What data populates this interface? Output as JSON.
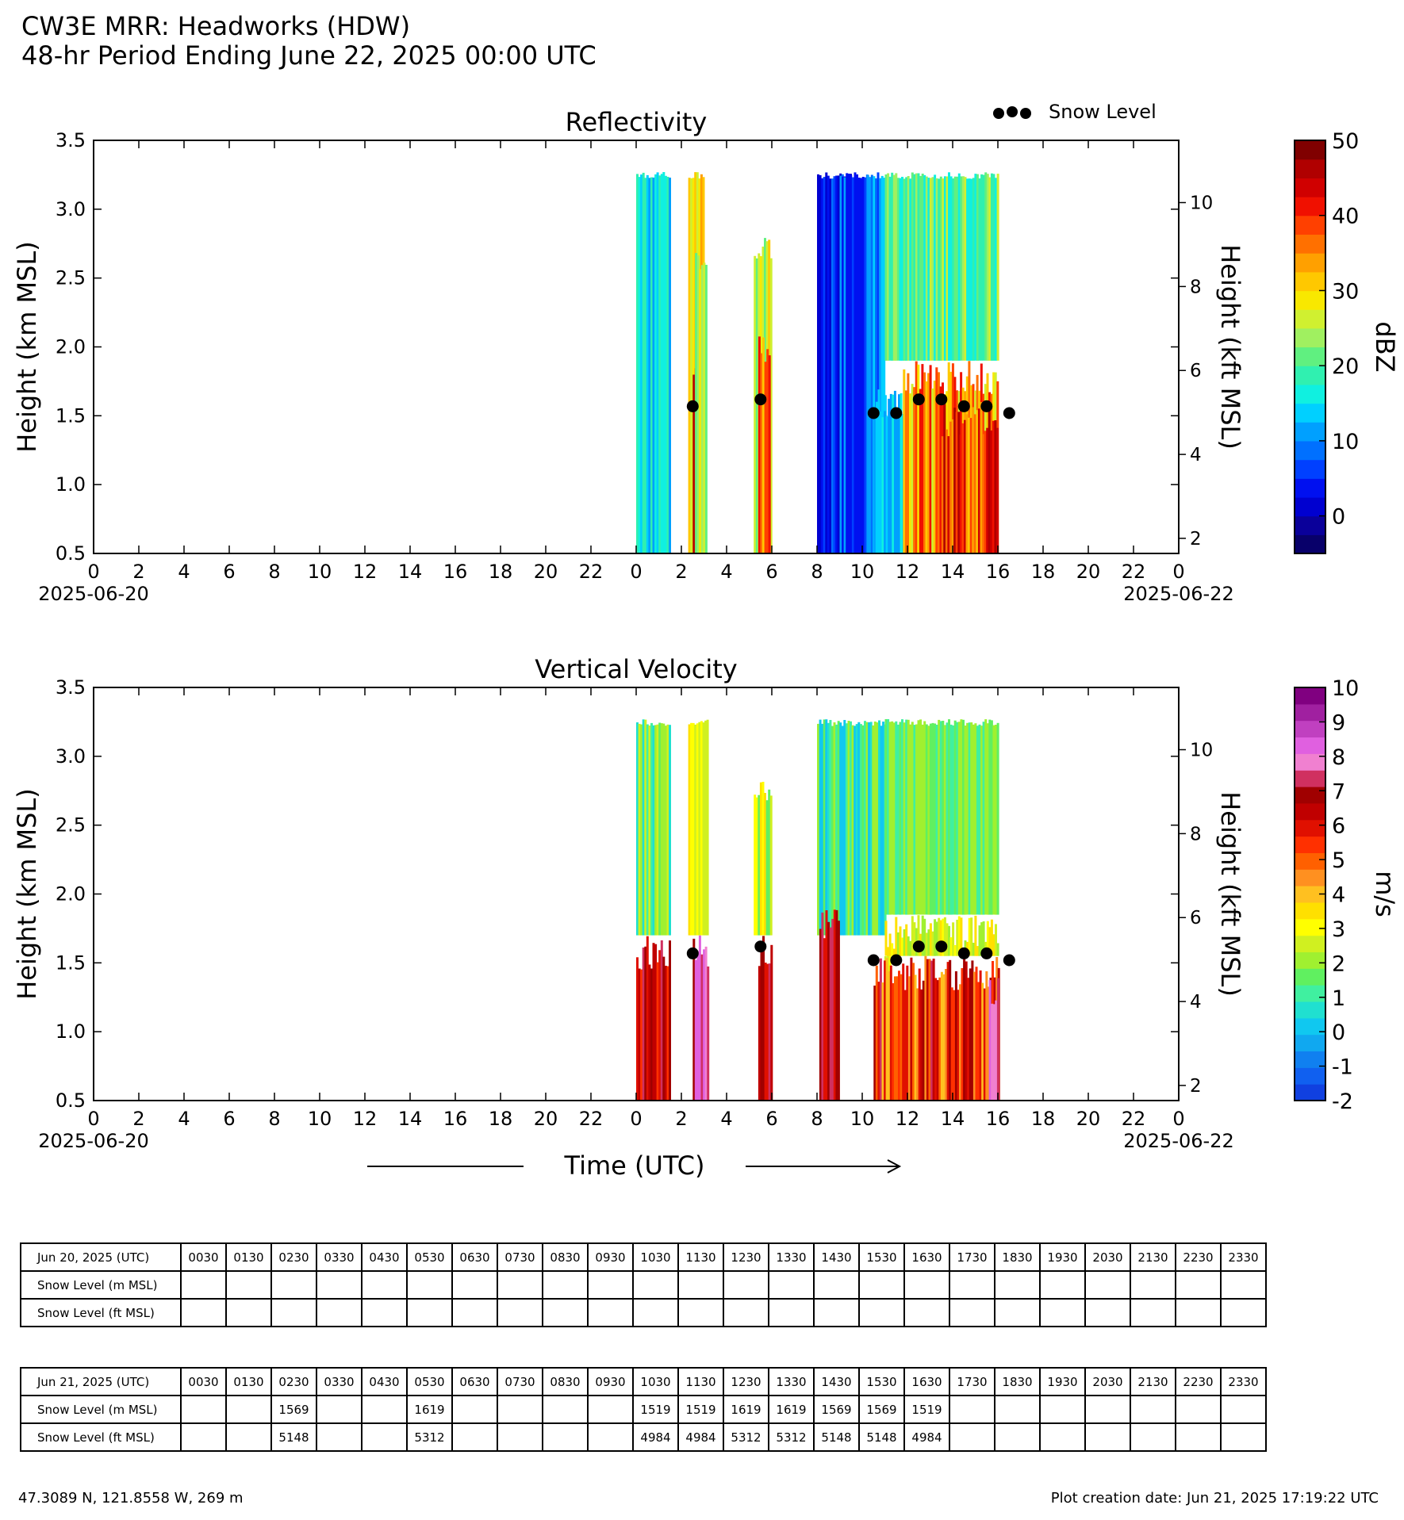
{
  "header": {
    "title_line1": "CW3E MRR: Headworks (HDW)",
    "title_line2": "48-hr Period Ending June 22, 2025 00:00 UTC"
  },
  "legend": {
    "snow_level_label": "Snow Level"
  },
  "xaxis": {
    "tick_labels": [
      "0",
      "2",
      "4",
      "6",
      "8",
      "10",
      "12",
      "14",
      "16",
      "18",
      "20",
      "22",
      "0",
      "2",
      "4",
      "6",
      "8",
      "10",
      "12",
      "14",
      "16",
      "18",
      "20",
      "22",
      "0"
    ],
    "start_date": "2025-06-20",
    "end_date": "2025-06-22",
    "title": "Time (UTC)"
  },
  "colors": {
    "reflectivity_scale": [
      "#08006a",
      "#0a009a",
      "#0000d0",
      "#0010f0",
      "#0040ff",
      "#0070ff",
      "#00a0ff",
      "#00d0ff",
      "#10f0e0",
      "#30f0b0",
      "#60f080",
      "#a0f060",
      "#d0f030",
      "#f8e800",
      "#ffc800",
      "#ffa000",
      "#ff7000",
      "#ff4000",
      "#f01000",
      "#d00000",
      "#b00000",
      "#800000"
    ],
    "velocity_scale": [
      "#1040e0",
      "#1060f0",
      "#1080f0",
      "#10a8f0",
      "#10c8f0",
      "#20e0d0",
      "#40f0a0",
      "#60f060",
      "#a0f030",
      "#d0f020",
      "#ffff00",
      "#ffe000",
      "#ffc020",
      "#ff9020",
      "#ff6000",
      "#ff3000",
      "#e01000",
      "#c00000",
      "#a00000",
      "#d03060",
      "#f080d0",
      "#e060e0",
      "#c040c0",
      "#a020a0",
      "#800080"
    ]
  },
  "chart_data": [
    {
      "type": "heatmap",
      "title": "Reflectivity",
      "xlabel": "",
      "ylabel": "Height (km MSL)",
      "y2label": "Height (kft MSL)",
      "xlim_hours": [
        0,
        48
      ],
      "ylim": [
        0.5,
        3.5
      ],
      "yticks": [
        "0.5",
        "1.0",
        "1.5",
        "2.0",
        "2.5",
        "3.0",
        "3.5"
      ],
      "y2ticks": [
        "2",
        "4",
        "6",
        "8",
        "10"
      ],
      "colorbar": {
        "label": "dBZ",
        "range": [
          -5,
          50
        ],
        "tick_labels": [
          "0",
          "10",
          "20",
          "30",
          "40",
          "50"
        ]
      },
      "snow_level_points": [
        {
          "time": "2025-06-21 02:30",
          "height_km": 1.569
        },
        {
          "time": "2025-06-21 05:30",
          "height_km": 1.619
        },
        {
          "time": "2025-06-21 10:30",
          "height_km": 1.519
        },
        {
          "time": "2025-06-21 11:30",
          "height_km": 1.519
        },
        {
          "time": "2025-06-21 12:30",
          "height_km": 1.619
        },
        {
          "time": "2025-06-21 13:30",
          "height_km": 1.619
        },
        {
          "time": "2025-06-21 14:30",
          "height_km": 1.569
        },
        {
          "time": "2025-06-21 15:30",
          "height_km": 1.569
        },
        {
          "time": "2025-06-21 16:30",
          "height_km": 1.519
        }
      ]
    },
    {
      "type": "heatmap",
      "title": "Vertical Velocity",
      "xlabel": "Time (UTC)",
      "ylabel": "Height (km MSL)",
      "y2label": "Height (kft MSL)",
      "xlim_hours": [
        0,
        48
      ],
      "ylim": [
        0.5,
        3.5
      ],
      "yticks": [
        "0.5",
        "1.0",
        "1.5",
        "2.0",
        "2.5",
        "3.0",
        "3.5"
      ],
      "y2ticks": [
        "2",
        "4",
        "6",
        "8",
        "10"
      ],
      "colorbar": {
        "label": "m/s",
        "range": [
          -2,
          10
        ],
        "tick_labels": [
          "-2",
          "-1",
          "0",
          "1",
          "2",
          "3",
          "4",
          "5",
          "6",
          "7",
          "8",
          "9",
          "10"
        ]
      },
      "snow_level_points": [
        {
          "time": "2025-06-21 02:30",
          "height_km": 1.569
        },
        {
          "time": "2025-06-21 05:30",
          "height_km": 1.619
        },
        {
          "time": "2025-06-21 10:30",
          "height_km": 1.519
        },
        {
          "time": "2025-06-21 11:30",
          "height_km": 1.519
        },
        {
          "time": "2025-06-21 12:30",
          "height_km": 1.619
        },
        {
          "time": "2025-06-21 13:30",
          "height_km": 1.619
        },
        {
          "time": "2025-06-21 14:30",
          "height_km": 1.569
        },
        {
          "time": "2025-06-21 15:30",
          "height_km": 1.569
        },
        {
          "time": "2025-06-21 16:30",
          "height_km": 1.519
        }
      ]
    },
    {
      "type": "table",
      "header_label": "Jun 20, 2025 (UTC)",
      "times": [
        "0030",
        "0130",
        "0230",
        "0330",
        "0430",
        "0530",
        "0630",
        "0730",
        "0830",
        "0930",
        "1030",
        "1130",
        "1230",
        "1330",
        "1430",
        "1530",
        "1630",
        "1730",
        "1830",
        "1930",
        "2030",
        "2130",
        "2230",
        "2330"
      ],
      "rows": [
        {
          "label": "Snow Level (m MSL)",
          "values": [
            "",
            "",
            "",
            "",
            "",
            "",
            "",
            "",
            "",
            "",
            "",
            "",
            "",
            "",
            "",
            "",
            "",
            "",
            "",
            "",
            "",
            "",
            "",
            ""
          ]
        },
        {
          "label": "Snow Level (ft MSL)",
          "values": [
            "",
            "",
            "",
            "",
            "",
            "",
            "",
            "",
            "",
            "",
            "",
            "",
            "",
            "",
            "",
            "",
            "",
            "",
            "",
            "",
            "",
            "",
            "",
            ""
          ]
        }
      ]
    },
    {
      "type": "table",
      "header_label": "Jun 21, 2025 (UTC)",
      "times": [
        "0030",
        "0130",
        "0230",
        "0330",
        "0430",
        "0530",
        "0630",
        "0730",
        "0830",
        "0930",
        "1030",
        "1130",
        "1230",
        "1330",
        "1430",
        "1530",
        "1630",
        "1730",
        "1830",
        "1930",
        "2030",
        "2130",
        "2230",
        "2330"
      ],
      "rows": [
        {
          "label": "Snow Level (m MSL)",
          "values": [
            "",
            "",
            "1569",
            "",
            "",
            "1619",
            "",
            "",
            "",
            "",
            "1519",
            "1519",
            "1619",
            "1619",
            "1569",
            "1569",
            "1519",
            "",
            "",
            "",
            "",
            "",
            "",
            ""
          ]
        },
        {
          "label": "Snow Level (ft MSL)",
          "values": [
            "",
            "",
            "5148",
            "",
            "",
            "5312",
            "",
            "",
            "",
            "",
            "4984",
            "4984",
            "5312",
            "5312",
            "5148",
            "5148",
            "4984",
            "",
            "",
            "",
            "",
            "",
            "",
            ""
          ]
        }
      ]
    }
  ],
  "footer": {
    "location": "47.3089 N, 121.8558 W, 269 m",
    "creation": "Plot creation date: Jun 21, 2025 17:19:22 UTC"
  }
}
